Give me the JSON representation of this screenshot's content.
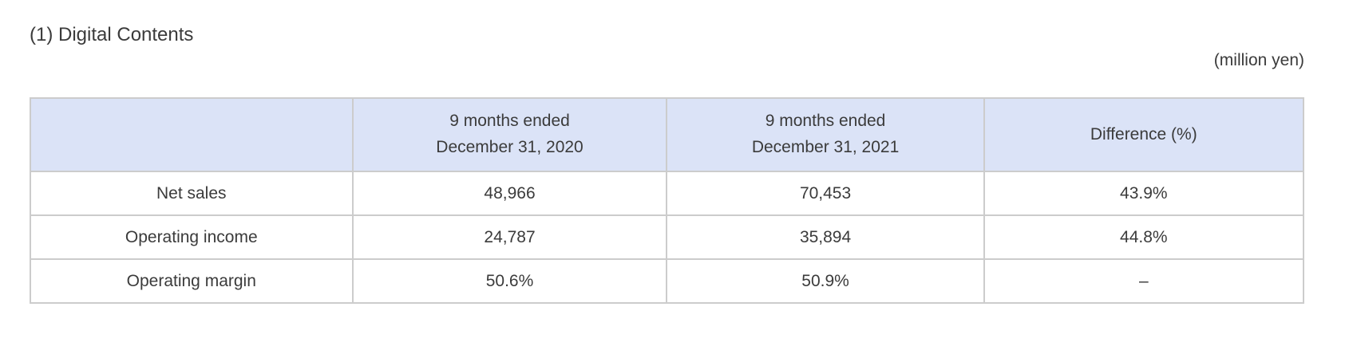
{
  "page": {
    "title": "(1) Digital Contents",
    "unit_note": "(million yen)"
  },
  "colors": {
    "header_bg": "#dbe3f7",
    "border": "#cccccc",
    "text": "#3b3b3b",
    "background": "#ffffff"
  },
  "table": {
    "headers": [
      "",
      "9 months ended\nDecember 31, 2020",
      "9 months ended\nDecember 31, 2021",
      "Difference (%)"
    ],
    "rows": [
      {
        "label": "Net sales",
        "y2020": "48,966",
        "y2021": "70,453",
        "diff": "43.9%"
      },
      {
        "label": "Operating income",
        "y2020": "24,787",
        "y2021": "35,894",
        "diff": "44.8%"
      },
      {
        "label": "Operating margin",
        "y2020": "50.6%",
        "y2021": "50.9%",
        "diff": "–"
      }
    ]
  }
}
